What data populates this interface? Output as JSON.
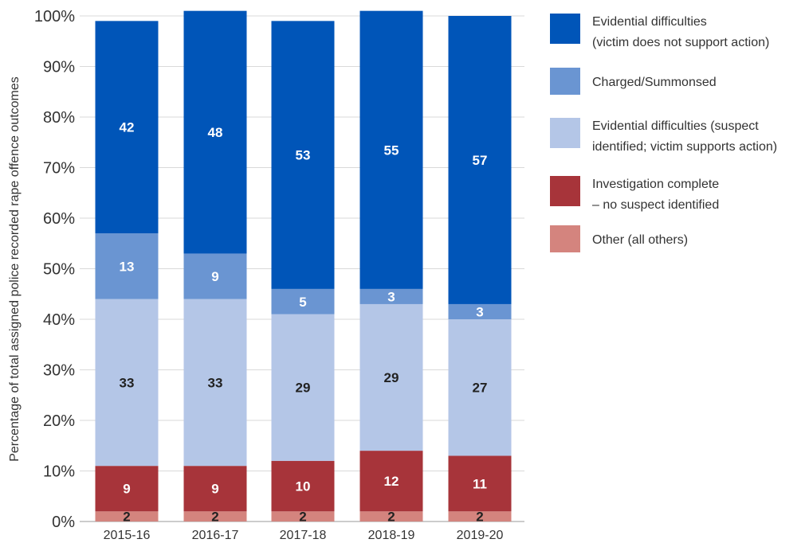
{
  "chart_data": {
    "type": "bar",
    "stacked": true,
    "ylabel": "Percentage of total assigned police recorded rape offence outcomes",
    "ylim": [
      0,
      100
    ],
    "y_ticks": [
      "0%",
      "10%",
      "20%",
      "30%",
      "40%",
      "50%",
      "60%",
      "70%",
      "80%",
      "90%",
      "100%"
    ],
    "categories": [
      "2015-16",
      "2016-17",
      "2017-18",
      "2018-19",
      "2019-20"
    ],
    "grid": true,
    "legend_position": "right",
    "series": [
      {
        "name": "Other (all others)",
        "color": "#d4847e",
        "label_color": "#222222",
        "values": [
          2,
          2,
          2,
          2,
          2
        ]
      },
      {
        "name": "Investigation complete – no suspect identified",
        "legend_lines": [
          "Investigation complete",
          "– no suspect identified"
        ],
        "color": "#a7343a",
        "label_color": "#ffffff",
        "values": [
          9,
          9,
          10,
          12,
          11
        ]
      },
      {
        "name": "Evidential difficulties (suspect identified; victim supports action)",
        "legend_lines": [
          "Evidential difficulties (suspect",
          "identified; victim supports action)"
        ],
        "color": "#b4c6e7",
        "label_color": "#222222",
        "values": [
          33,
          33,
          29,
          29,
          27
        ]
      },
      {
        "name": "Charged/Summonsed",
        "legend_lines": [
          "Charged/Summonsed"
        ],
        "color": "#6a95d2",
        "label_color": "#ffffff",
        "values": [
          13,
          9,
          5,
          3,
          3
        ]
      },
      {
        "name": "Evidential difficulties (victim does not support action)",
        "legend_lines": [
          "Evidential difficulties",
          "(victim does not support action)"
        ],
        "color": "#0055b8",
        "label_color": "#ffffff",
        "values": [
          42,
          48,
          53,
          55,
          57
        ]
      }
    ],
    "legend_order": [
      4,
      3,
      2,
      1,
      0
    ]
  }
}
